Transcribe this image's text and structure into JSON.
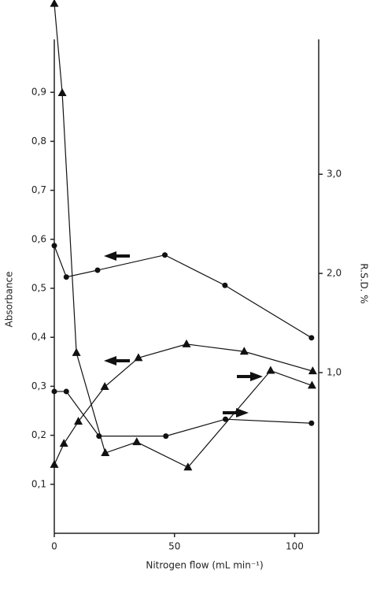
{
  "chart_data": {
    "type": "line",
    "x_label": "Nitrogen flow  (mL min⁻¹)",
    "y_label": "Absorbance",
    "y2_label": "R.S.D. %",
    "xlim": [
      0,
      110
    ],
    "xticks": [
      0,
      50,
      100
    ],
    "ylim": [
      0,
      1.0
    ],
    "yticks": [
      {
        "value": 0.1,
        "label": "0,1"
      },
      {
        "value": 0.2,
        "label": "0,2"
      },
      {
        "value": 0.3,
        "label": "0,3"
      },
      {
        "value": 0.4,
        "label": "0,4"
      },
      {
        "value": 0.5,
        "label": "0,5"
      },
      {
        "value": 0.6,
        "label": "0,6"
      },
      {
        "value": 0.7,
        "label": "0,7"
      },
      {
        "value": 0.8,
        "label": "0,8"
      },
      {
        "value": 0.9,
        "label": "0,9"
      }
    ],
    "y2lim": [
      -0.62,
      4.36
    ],
    "y2ticks": [
      {
        "value": 1,
        "label": "1,0"
      },
      {
        "value": 2,
        "label": "2,0"
      },
      {
        "value": 3,
        "label": "3,0"
      }
    ],
    "series": [
      {
        "marker": "circle",
        "color": "#111111",
        "axis": "y",
        "x": [
          0,
          5,
          18,
          46,
          71,
          107
        ],
        "values": [
          0.587,
          0.523,
          0.537,
          0.568,
          0.506,
          0.399
        ]
      },
      {
        "marker": "triangle",
        "color": "#111111",
        "axis": "y",
        "x": [
          0,
          4,
          10,
          21,
          35,
          55,
          79,
          107.5
        ],
        "values": [
          0.14,
          0.183,
          0.228,
          0.299,
          0.358,
          0.386,
          0.371,
          0.331
        ]
      },
      {
        "marker": "triangle",
        "color": "#111111",
        "axis": "y2",
        "x": [
          0,
          3.3,
          9.2,
          21.2,
          34.3,
          55.6,
          90,
          107.2
        ],
        "values": [
          4.72,
          3.82,
          1.2,
          0.19,
          0.3,
          0.045,
          1.02,
          0.87
        ]
      },
      {
        "marker": "circle",
        "color": "#111111",
        "axis": "y2",
        "x": [
          0,
          5,
          18.6,
          46.4,
          71.2,
          107
        ],
        "values": [
          0.81,
          0.81,
          0.36,
          0.36,
          0.53,
          0.49
        ]
      }
    ]
  }
}
